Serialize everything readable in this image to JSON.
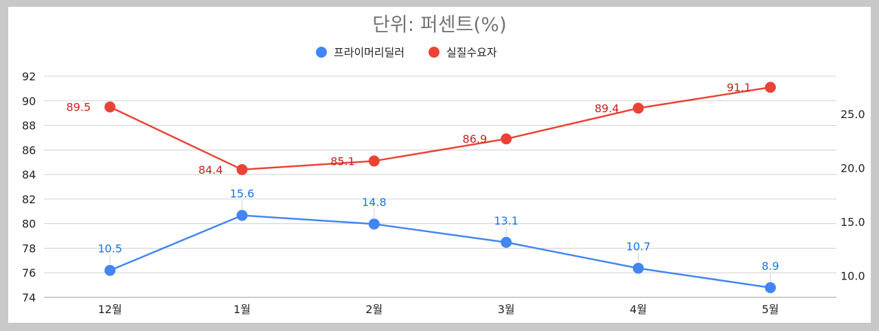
{
  "chart_data": {
    "type": "line",
    "title": "단위: 퍼센트(%)",
    "categories": [
      "12월",
      "1월",
      "2월",
      "3월",
      "4월",
      "5월"
    ],
    "legend_position": "top",
    "grid": true,
    "axes": {
      "left": {
        "min": 74,
        "max": 92,
        "ticks": [
          "74",
          "76",
          "78",
          "80",
          "82",
          "84",
          "86",
          "88",
          "90",
          "92"
        ],
        "series": "실질수요자"
      },
      "right": {
        "min": 8,
        "max": 28.5,
        "ticks": [
          "10.0",
          "15.0",
          "20.0",
          "25.0"
        ],
        "series": "프라이머리딜러"
      }
    },
    "series": [
      {
        "name": "프라이머리딜러",
        "color": "#4285f4",
        "label_color": "#1a73e8",
        "axis": "right",
        "values": [
          10.5,
          15.6,
          14.8,
          13.1,
          10.7,
          8.9
        ],
        "labels": [
          "10.5",
          "15.6",
          "14.8",
          "13.1",
          "10.7",
          "8.9"
        ]
      },
      {
        "name": "실질수요자",
        "color": "#ea4335",
        "label_color": "#c5221f",
        "axis": "left",
        "values": [
          89.5,
          84.4,
          85.1,
          86.9,
          89.4,
          91.1
        ],
        "labels": [
          "89.5",
          "84.4",
          "85.1",
          "86.9",
          "89.4",
          "91.1"
        ]
      }
    ]
  }
}
